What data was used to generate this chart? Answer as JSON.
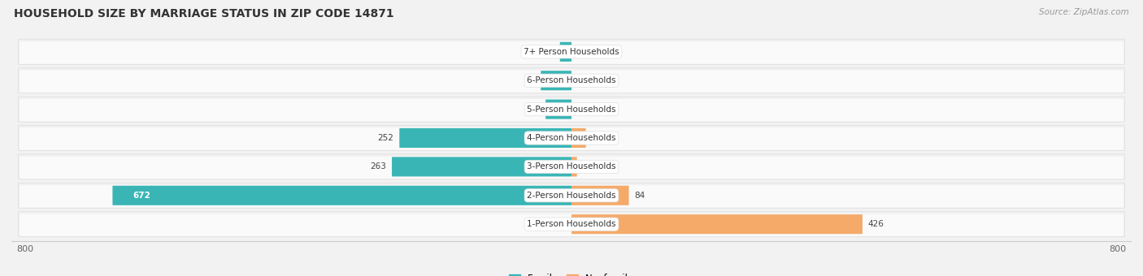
{
  "title": "HOUSEHOLD SIZE BY MARRIAGE STATUS IN ZIP CODE 14871",
  "source": "Source: ZipAtlas.com",
  "categories": [
    "7+ Person Households",
    "6-Person Households",
    "5-Person Households",
    "4-Person Households",
    "3-Person Households",
    "2-Person Households",
    "1-Person Households"
  ],
  "family_values": [
    17,
    45,
    38,
    252,
    263,
    672,
    0
  ],
  "nonfamily_values": [
    0,
    0,
    0,
    21,
    8,
    84,
    426
  ],
  "family_color": "#3ab5b5",
  "nonfamily_color": "#f5aa6a",
  "xlim_left": -820,
  "xlim_right": 820,
  "background_color": "#f2f2f2",
  "row_bg_color": "#ebebeb",
  "row_bg_light": "#f8f8f8",
  "title_fontsize": 10,
  "source_fontsize": 7.5,
  "bar_label_fontsize": 7.5,
  "cat_label_fontsize": 7.5
}
